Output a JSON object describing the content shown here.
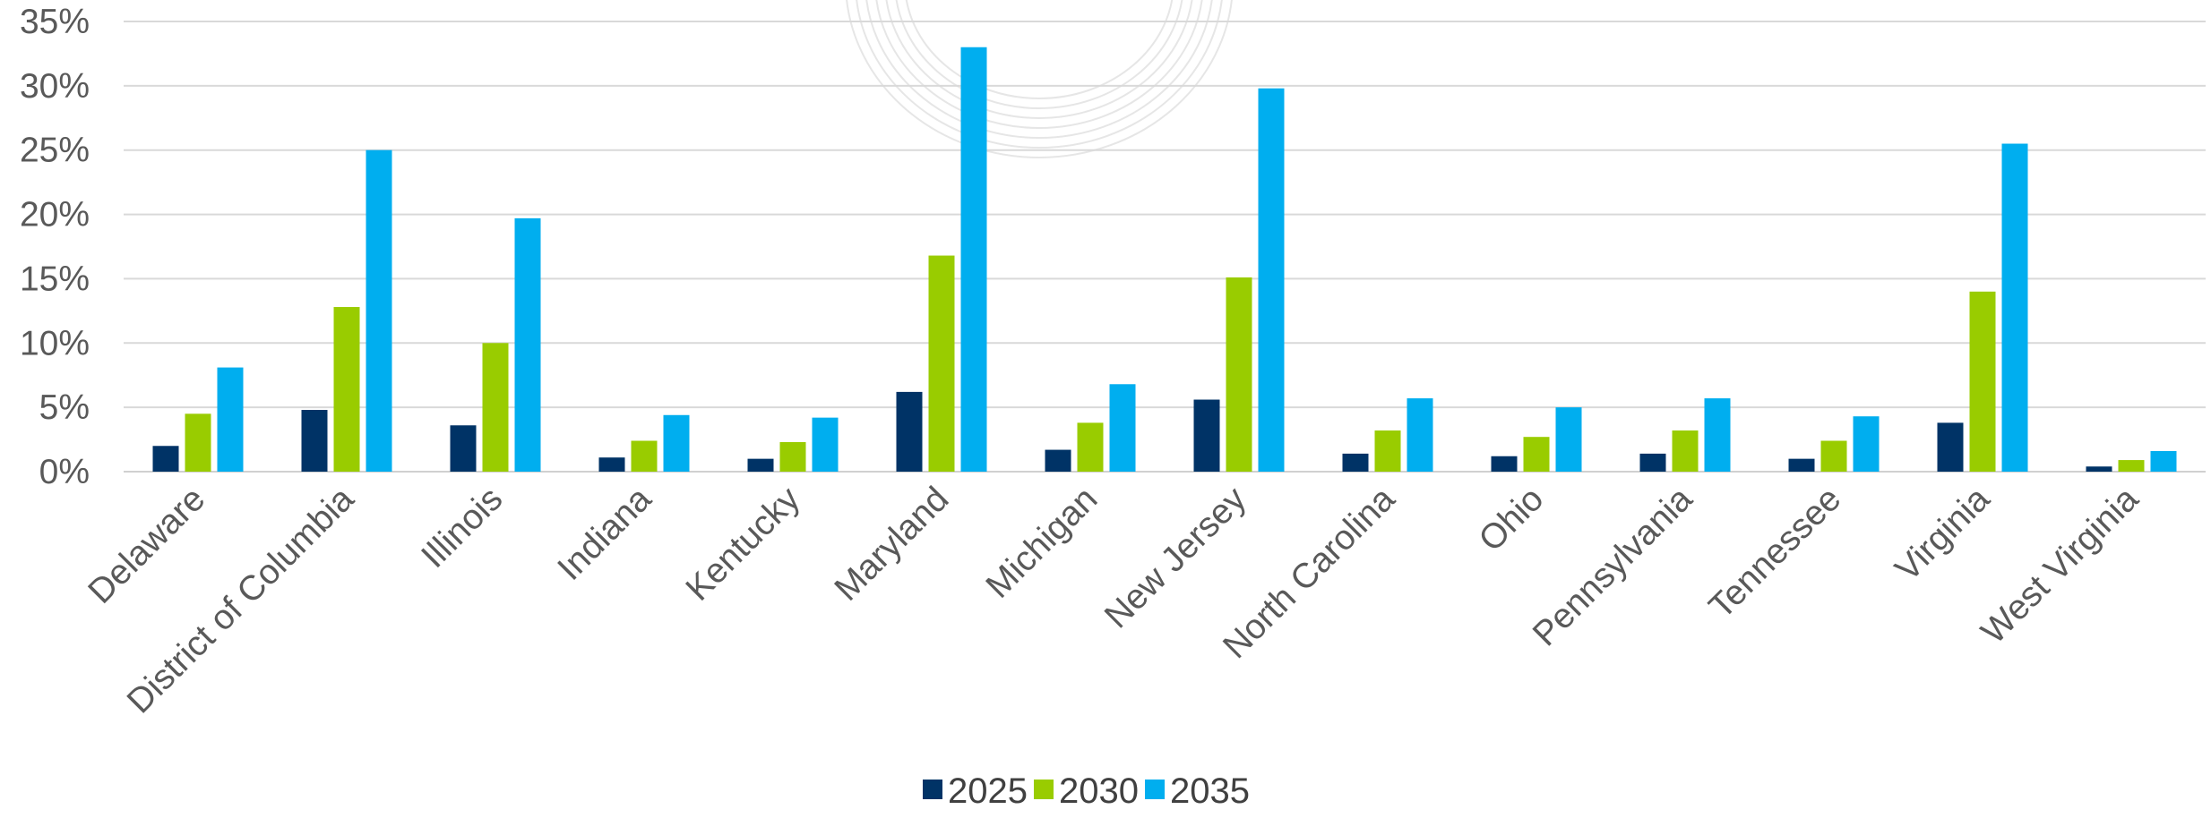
{
  "chart_data": {
    "type": "bar",
    "categories": [
      "Delaware",
      "District of Columbia",
      "Illinois",
      "Indiana",
      "Kentucky",
      "Maryland",
      "Michigan",
      "New Jersey",
      "North Carolina",
      "Ohio",
      "Pennsylvania",
      "Tennessee",
      "Virginia",
      "West Virginia"
    ],
    "series": [
      {
        "name": "2025",
        "color": "#003366",
        "values": [
          2.0,
          4.8,
          3.6,
          1.1,
          1.0,
          6.2,
          1.7,
          5.6,
          1.4,
          1.2,
          1.4,
          1.0,
          3.8,
          0.4
        ]
      },
      {
        "name": "2030",
        "color": "#99cc00",
        "values": [
          4.5,
          12.8,
          10.0,
          2.4,
          2.3,
          16.8,
          3.8,
          15.1,
          3.2,
          2.7,
          3.2,
          2.4,
          14.0,
          0.9
        ]
      },
      {
        "name": "2035",
        "color": "#00aeef",
        "values": [
          8.1,
          25.0,
          19.7,
          4.4,
          4.2,
          33.0,
          6.8,
          29.8,
          5.7,
          5.0,
          5.7,
          4.3,
          25.5,
          1.6
        ]
      }
    ],
    "yticks": [
      "0%",
      "5%",
      "10%",
      "15%",
      "20%",
      "25%",
      "30%",
      "35%"
    ],
    "ylim": [
      0,
      35
    ],
    "grid": true,
    "legend_position": "bottom-center"
  }
}
